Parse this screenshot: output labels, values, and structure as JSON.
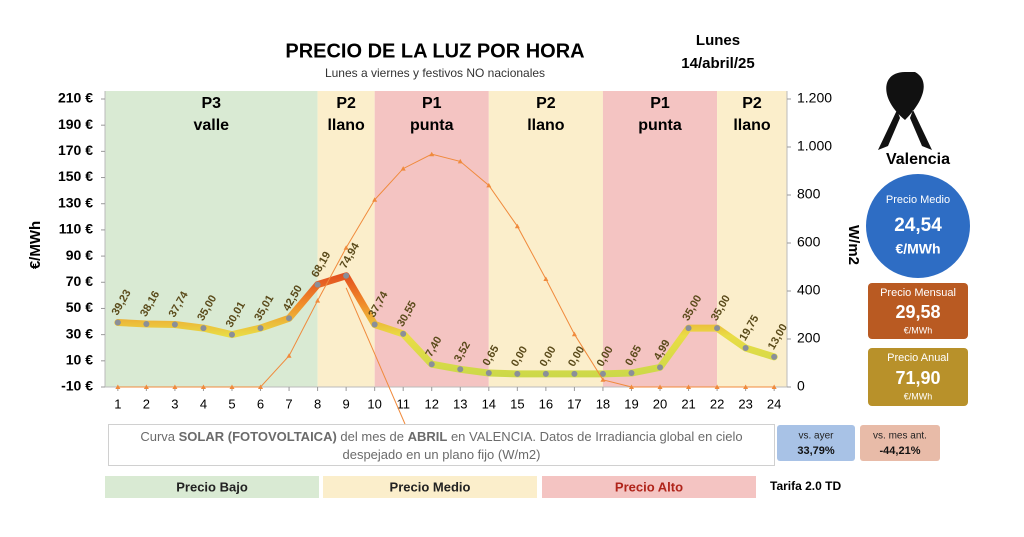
{
  "chart_data": {
    "type": "line",
    "title": "PRECIO DE LA LUZ POR HORA",
    "subtitle": "Lunes a viernes y festivos NO nacionales",
    "day": "Lunes",
    "date": "14/abril/25",
    "ylabel": "€/MWh",
    "y2label": "W/m2",
    "x": [
      1,
      2,
      3,
      4,
      5,
      6,
      7,
      8,
      9,
      10,
      11,
      12,
      13,
      14,
      15,
      16,
      17,
      18,
      19,
      20,
      21,
      22,
      23,
      24
    ],
    "xlim": [
      0.55,
      24.45
    ],
    "ylim": [
      -10,
      210
    ],
    "yticks": [
      {
        "value": -10,
        "label": "-10 €"
      },
      {
        "value": 10,
        "label": "10 €"
      },
      {
        "value": 30,
        "label": "30 €"
      },
      {
        "value": 50,
        "label": "50 €"
      },
      {
        "value": 70,
        "label": "70 €"
      },
      {
        "value": 90,
        "label": "90 €"
      },
      {
        "value": 110,
        "label": "110 €"
      },
      {
        "value": 130,
        "label": "130 €"
      },
      {
        "value": 150,
        "label": "150 €"
      },
      {
        "value": 170,
        "label": "170 €"
      },
      {
        "value": 190,
        "label": "190 €"
      },
      {
        "value": 210,
        "label": "210 €"
      }
    ],
    "y2lim": [
      0,
      1200
    ],
    "y2ticks": [
      0,
      200,
      400,
      600,
      800,
      {
        "value": 1000,
        "label": "1.000"
      },
      {
        "value": 1200,
        "label": "1.200"
      }
    ],
    "series": [
      {
        "color": "#e9dd45",
        "values": [
          39.23,
          38.16,
          37.74,
          35.0,
          30.01,
          35.01,
          42.5,
          68.19,
          74.94,
          37.74,
          30.55,
          7.4,
          3.52,
          0.65,
          0.0,
          0.0,
          0.0,
          0.0,
          0.65,
          4.99,
          35.0,
          35.0,
          19.75,
          13.0
        ],
        "value_labels": [
          "39,23",
          "38,16",
          "37,74",
          "35,00",
          "30,01",
          "35,01",
          "42,50",
          "68,19",
          "74,94",
          "37,74",
          "30,55",
          "7,40",
          "3,52",
          "0,65",
          "0,00",
          "0,00",
          "0,00",
          "0,00",
          "0,65",
          "4,99",
          "35,00",
          "35,00",
          "19,75",
          "13,00"
        ]
      },
      {
        "axis": "y2",
        "color": "#f08a3c",
        "values": [
          0,
          0,
          0,
          0,
          0,
          0,
          130,
          360,
          580,
          780,
          910,
          970,
          940,
          840,
          670,
          450,
          220,
          30,
          0,
          0,
          0,
          0,
          0,
          0
        ]
      }
    ],
    "periods": [
      {
        "start": 0.55,
        "end": 8,
        "label": [
          "P3",
          "valle"
        ],
        "color": "#d9ead3"
      },
      {
        "start": 8,
        "end": 10,
        "label": [
          "P2",
          "llano"
        ],
        "color": "#fbeecb"
      },
      {
        "start": 10,
        "end": 14,
        "label": [
          "P1",
          "punta"
        ],
        "color": "#f4c4c2"
      },
      {
        "start": 14,
        "end": 18,
        "label": [
          "P2",
          "llano"
        ],
        "color": "#fbeecb"
      },
      {
        "start": 18,
        "end": 22,
        "label": [
          "P1",
          "punta"
        ],
        "color": "#f4c4c2"
      },
      {
        "start": 22,
        "end": 24.45,
        "label": [
          "P2",
          "llano"
        ],
        "color": "#fbeecb"
      }
    ],
    "note": [
      {
        "text": "Curva ",
        "bold": false
      },
      {
        "text": "SOLAR (FOTOVOLTAICA)",
        "bold": true
      },
      {
        "text": " del mes de ",
        "bold": false
      },
      {
        "text": "ABRIL",
        "bold": true
      },
      {
        "text": " en VALENCIA. Datos de Irradiancia global en cielo despejado en un plano fijo (W/m2)",
        "bold": false
      }
    ],
    "legend_boxes": [
      {
        "label": "Precio Bajo",
        "color": "#d9ead3"
      },
      {
        "label": "Precio Medio",
        "color": "#fbeecb"
      },
      {
        "label": "Precio Alto",
        "color": "#f4c4c2"
      }
    ],
    "tariff": "Tarifa 2.0 TD"
  },
  "summary": {
    "city": "Valencia",
    "average": {
      "label": "Precio Medio",
      "value": "24,54",
      "unit": "€/MWh"
    },
    "monthly": {
      "label": "Precio Mensual",
      "value": "29,58",
      "unit": "€/MWh"
    },
    "annual": {
      "label": "Precio Anual",
      "value": "71,90",
      "unit": "€/MWh"
    },
    "vs_yesterday": {
      "label": "vs. ayer",
      "value": "33,79%"
    },
    "vs_last_month": {
      "label": "vs. mes ant.",
      "value": "-44,21%"
    }
  }
}
